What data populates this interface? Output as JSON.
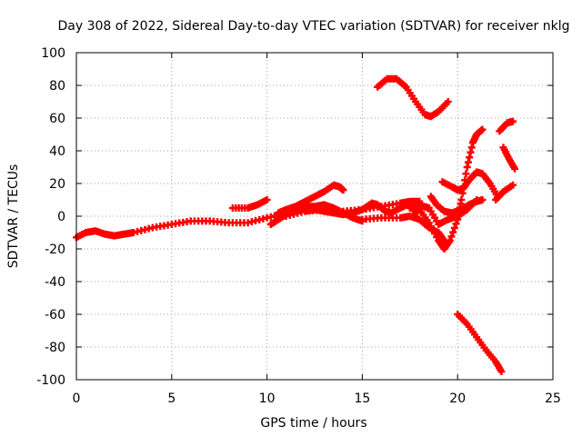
{
  "chart_data": {
    "type": "scatter",
    "title": "Day 308 of 2022, Sidereal Day-to-day VTEC variation (SDTVAR) for receiver nklg",
    "xlabel": "GPS time / hours",
    "ylabel": "SDTVAR / TECUs",
    "xlim": [
      0,
      25
    ],
    "ylim": [
      -100,
      100
    ],
    "xticks": [
      0,
      5,
      10,
      15,
      20,
      25
    ],
    "yticks": [
      -100,
      -80,
      -60,
      -40,
      -20,
      0,
      20,
      40,
      60,
      80,
      100
    ],
    "grid": true,
    "series_color": "#ff0000",
    "series": [
      {
        "name": "main",
        "points": [
          [
            0,
            -13
          ],
          [
            0.5,
            -10
          ],
          [
            1,
            -9
          ],
          [
            1.5,
            -11
          ],
          [
            2,
            -12
          ],
          [
            2.5,
            -11
          ],
          [
            3,
            -10
          ],
          [
            4,
            -7
          ],
          [
            5,
            -5
          ],
          [
            6,
            -3
          ],
          [
            7,
            -3
          ],
          [
            8,
            -4
          ],
          [
            9,
            -4
          ],
          [
            10,
            -1
          ],
          [
            11,
            2
          ],
          [
            12,
            3
          ],
          [
            13,
            4
          ],
          [
            14,
            3
          ],
          [
            15,
            4
          ],
          [
            16,
            6
          ],
          [
            17,
            8
          ],
          [
            17.5,
            9
          ],
          [
            18,
            9
          ]
        ]
      },
      {
        "name": "s2",
        "points": [
          [
            8.2,
            5
          ],
          [
            9,
            5
          ],
          [
            9.5,
            7
          ],
          [
            10,
            10
          ]
        ]
      },
      {
        "name": "s3",
        "points": [
          [
            10.2,
            -5
          ],
          [
            10.6,
            -2
          ],
          [
            11,
            1
          ],
          [
            11.5,
            4
          ],
          [
            12,
            6
          ],
          [
            12.5,
            6
          ],
          [
            13,
            7
          ],
          [
            13.5,
            5
          ],
          [
            14,
            2
          ],
          [
            14.5,
            -1
          ],
          [
            15,
            -3
          ]
        ]
      },
      {
        "name": "s4",
        "points": [
          [
            10.6,
            2
          ],
          [
            11,
            4
          ],
          [
            11.5,
            6
          ],
          [
            12,
            9
          ],
          [
            12.5,
            12
          ],
          [
            13,
            15
          ],
          [
            13.5,
            19
          ],
          [
            13.8,
            18
          ],
          [
            14,
            16
          ]
        ]
      },
      {
        "name": "s5",
        "points": [
          [
            11,
            0
          ],
          [
            12,
            3
          ],
          [
            12.5,
            4
          ],
          [
            13,
            3
          ],
          [
            13.5,
            2
          ],
          [
            14,
            1
          ],
          [
            14.5,
            2
          ],
          [
            15,
            4
          ],
          [
            15.5,
            8
          ],
          [
            15.8,
            7
          ],
          [
            16.2,
            3
          ],
          [
            16.5,
            2
          ],
          [
            17,
            5
          ],
          [
            17.5,
            8
          ],
          [
            18,
            8
          ]
        ]
      },
      {
        "name": "s6",
        "points": [
          [
            15,
            -2
          ],
          [
            16,
            -1
          ],
          [
            17,
            -1
          ],
          [
            17.5,
            0
          ],
          [
            18,
            -2
          ],
          [
            18.5,
            -7
          ],
          [
            19,
            -10
          ],
          [
            19.3,
            -15
          ]
        ]
      },
      {
        "name": "s7",
        "points": [
          [
            15.8,
            79
          ],
          [
            16.3,
            84
          ],
          [
            16.8,
            84
          ],
          [
            17.3,
            79
          ],
          [
            17.8,
            70
          ],
          [
            18.3,
            62
          ],
          [
            18.6,
            61
          ],
          [
            19,
            64
          ],
          [
            19.5,
            70
          ]
        ]
      },
      {
        "name": "s8",
        "points": [
          [
            17.5,
            5
          ],
          [
            18,
            4
          ],
          [
            18.5,
            -4
          ],
          [
            19,
            -15
          ],
          [
            19.3,
            -20
          ],
          [
            19.6,
            -15
          ],
          [
            20,
            -2
          ],
          [
            20.2,
            10
          ],
          [
            20.5,
            30
          ],
          [
            20.8,
            45
          ],
          [
            21,
            50
          ],
          [
            21.3,
            53
          ]
        ]
      },
      {
        "name": "s9",
        "points": [
          [
            17.8,
            2
          ],
          [
            18.2,
            6
          ],
          [
            18.5,
            5
          ],
          [
            19,
            -5
          ],
          [
            19.5,
            -2
          ],
          [
            20,
            0
          ],
          [
            20.5,
            4
          ],
          [
            21,
            10
          ]
        ]
      },
      {
        "name": "s10",
        "points": [
          [
            18.6,
            12
          ],
          [
            18.9,
            7
          ],
          [
            19.3,
            3
          ],
          [
            19.7,
            2
          ],
          [
            20.2,
            4
          ],
          [
            20.6,
            7
          ],
          [
            21,
            9
          ],
          [
            21.3,
            10
          ]
        ]
      },
      {
        "name": "s11",
        "points": [
          [
            19.2,
            21
          ],
          [
            19.7,
            18
          ],
          [
            20,
            16
          ],
          [
            20.3,
            17
          ],
          [
            20.6,
            22
          ],
          [
            21,
            27
          ],
          [
            21.3,
            26
          ],
          [
            21.7,
            20
          ],
          [
            22.1,
            12
          ]
        ]
      },
      {
        "name": "s12",
        "points": [
          [
            20,
            -60
          ],
          [
            20.5,
            -66
          ],
          [
            21,
            -74
          ],
          [
            21.5,
            -82
          ],
          [
            22,
            -89
          ],
          [
            22.3,
            -95
          ]
        ]
      },
      {
        "name": "s13",
        "points": [
          [
            22,
            10
          ],
          [
            22.4,
            15
          ],
          [
            22.9,
            19
          ]
        ]
      },
      {
        "name": "s14",
        "points": [
          [
            22.2,
            52
          ],
          [
            22.6,
            57
          ],
          [
            22.9,
            58
          ]
        ]
      },
      {
        "name": "s15",
        "points": [
          [
            22.4,
            42
          ],
          [
            22.7,
            35
          ],
          [
            23,
            29
          ]
        ]
      }
    ]
  }
}
